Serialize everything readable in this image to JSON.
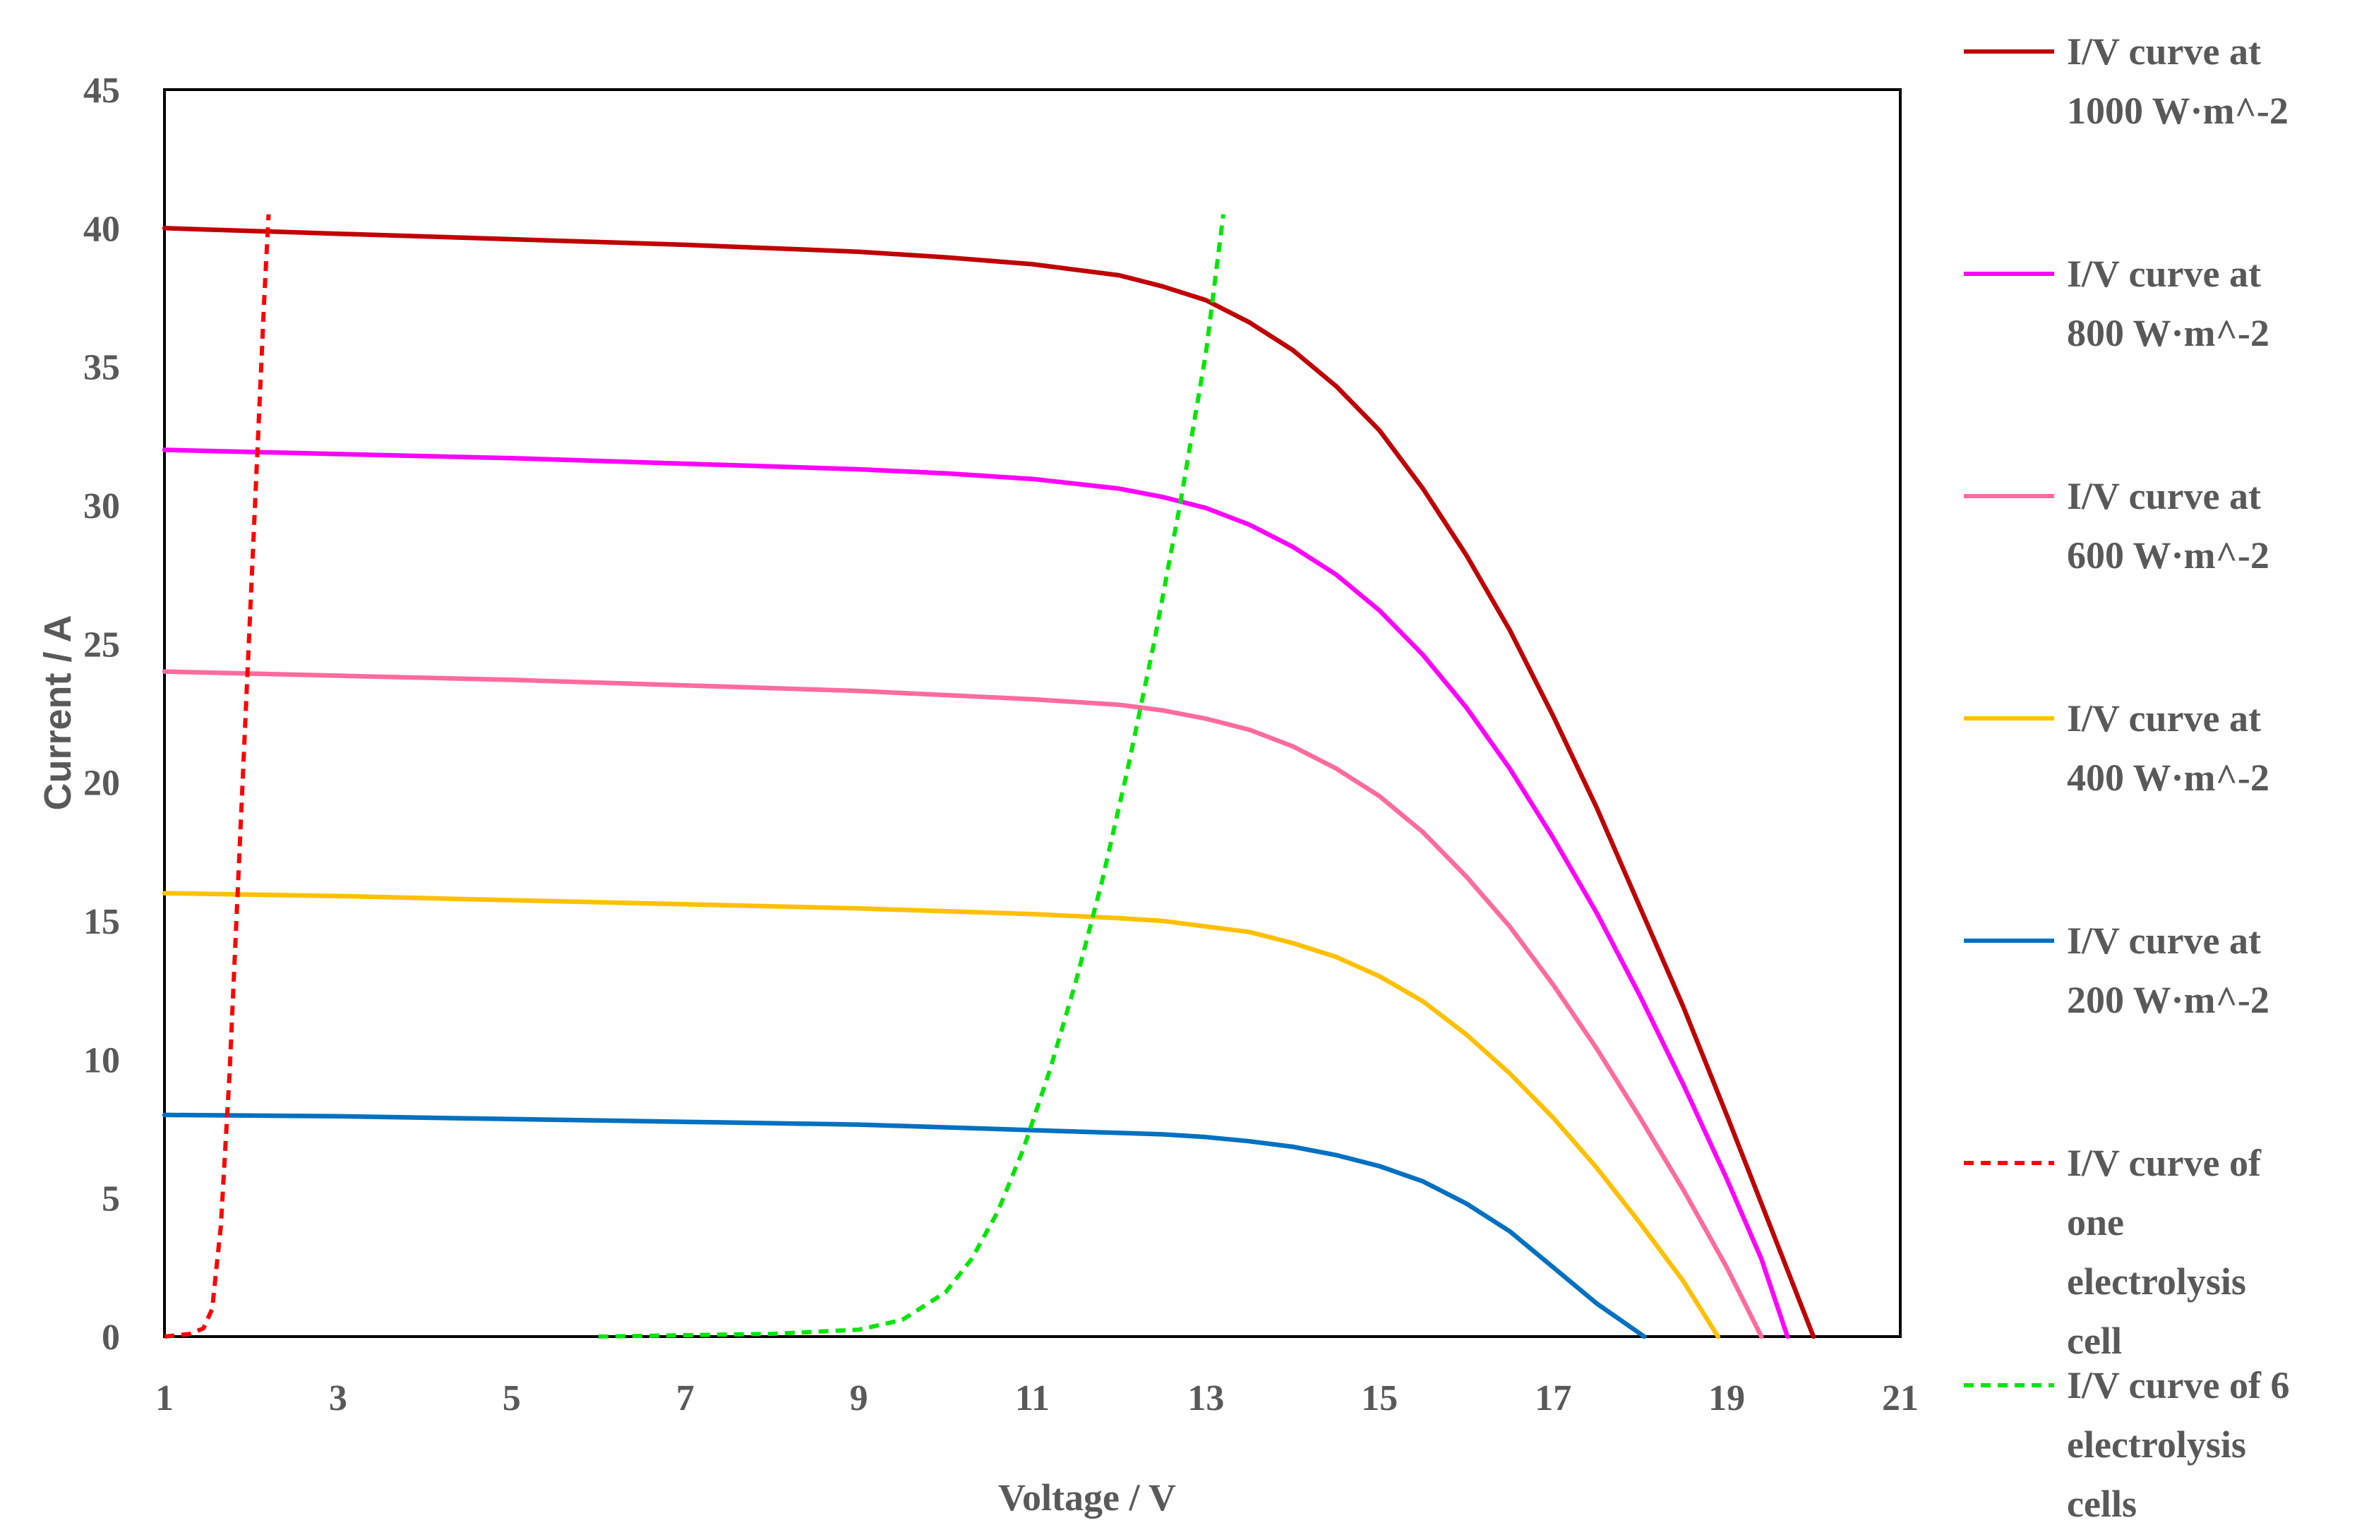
{
  "chart_data": {
    "type": "line",
    "xlabel": "Voltage  / V",
    "ylabel": "Current / A",
    "xlim": [
      1,
      21
    ],
    "ylim": [
      0,
      45
    ],
    "xticks": [
      1,
      3,
      5,
      7,
      9,
      11,
      13,
      15,
      17,
      19,
      21
    ],
    "yticks": [
      0,
      5,
      10,
      15,
      20,
      25,
      30,
      35,
      40,
      45
    ],
    "grid": false,
    "legend_position": "right",
    "series": [
      {
        "name": "I/V curve at 1000 W·m^-2",
        "legend_lines": [
          "I/V curve at",
          "1000 W·m^-2"
        ],
        "color": "#c00000",
        "dash": "solid",
        "x": [
          1,
          3,
          5,
          7,
          9,
          10,
          11,
          12,
          12.5,
          13,
          13.5,
          14,
          14.5,
          15,
          15.5,
          16,
          16.5,
          17,
          17.5,
          18,
          18.5,
          19,
          19.5,
          20
        ],
        "y": [
          40,
          39.8,
          39.6,
          39.4,
          39.15,
          38.95,
          38.7,
          38.3,
          37.9,
          37.4,
          36.6,
          35.6,
          34.3,
          32.7,
          30.6,
          28.2,
          25.5,
          22.4,
          19.1,
          15.5,
          11.9,
          8.0,
          4.0,
          0
        ]
      },
      {
        "name": "I/V curve at 800 W·m^-2",
        "legend_lines": [
          "I/V curve at",
          "800 W·m^-2"
        ],
        "color": "#ff00ff",
        "dash": "solid",
        "x": [
          1,
          3,
          5,
          7,
          9,
          10,
          11,
          12,
          12.5,
          13,
          13.5,
          14,
          14.5,
          15,
          15.5,
          16,
          16.5,
          17,
          17.5,
          18,
          18.5,
          19,
          19.4,
          19.7
        ],
        "y": [
          32,
          31.85,
          31.7,
          31.5,
          31.3,
          31.15,
          30.95,
          30.6,
          30.3,
          29.9,
          29.3,
          28.5,
          27.5,
          26.2,
          24.6,
          22.7,
          20.5,
          18.0,
          15.3,
          12.3,
          9.1,
          5.7,
          2.8,
          0
        ]
      },
      {
        "name": "I/V curve at 600 W·m^-2",
        "legend_lines": [
          "I/V curve at",
          "600 W·m^-2"
        ],
        "color": "#ff6b9d",
        "dash": "solid",
        "x": [
          1,
          3,
          5,
          7,
          9,
          10,
          11,
          12,
          12.5,
          13,
          13.5,
          14,
          14.5,
          15,
          15.5,
          16,
          16.5,
          17,
          17.5,
          18,
          18.5,
          19,
          19.4
        ],
        "y": [
          24,
          23.85,
          23.7,
          23.5,
          23.3,
          23.15,
          23.0,
          22.8,
          22.6,
          22.3,
          21.9,
          21.3,
          20.5,
          19.5,
          18.2,
          16.6,
          14.8,
          12.7,
          10.4,
          7.9,
          5.3,
          2.5,
          0
        ]
      },
      {
        "name": "I/V curve at 400 W·m^-2",
        "legend_lines": [
          "I/V curve at",
          "400 W·m^-2"
        ],
        "color": "#ffc000",
        "dash": "solid",
        "x": [
          1,
          3,
          5,
          7,
          9,
          10,
          11,
          12,
          12.5,
          13,
          13.5,
          14,
          14.5,
          15,
          15.5,
          16,
          16.5,
          17,
          17.5,
          18,
          18.5,
          18.9
        ],
        "y": [
          16,
          15.9,
          15.75,
          15.6,
          15.45,
          15.35,
          15.25,
          15.1,
          15.0,
          14.8,
          14.6,
          14.2,
          13.7,
          13.0,
          12.1,
          10.9,
          9.5,
          7.9,
          6.1,
          4.1,
          2.0,
          0
        ]
      },
      {
        "name": "I/V curve at 200 W·m^-2",
        "legend_lines": [
          "I/V curve at",
          "200 W·m^-2"
        ],
        "color": "#0070c0",
        "dash": "solid",
        "x": [
          1,
          3,
          5,
          7,
          9,
          10,
          11,
          12,
          12.5,
          13,
          13.5,
          14,
          14.5,
          15,
          15.5,
          16,
          16.5,
          17,
          17.5,
          18.05
        ],
        "y": [
          8,
          7.95,
          7.85,
          7.75,
          7.65,
          7.55,
          7.45,
          7.35,
          7.3,
          7.2,
          7.05,
          6.85,
          6.55,
          6.15,
          5.6,
          4.8,
          3.8,
          2.5,
          1.2,
          0
        ]
      },
      {
        "name": "I/V curve of one electrolysis cell",
        "legend_lines": [
          "I/V curve of",
          "one",
          "electrolysis",
          "cell"
        ],
        "color": "#ff0000",
        "dash": "dashed",
        "x": [
          1,
          1.3,
          1.45,
          1.55,
          1.65,
          1.75,
          1.85,
          1.95,
          2.05,
          2.15,
          2.2
        ],
        "y": [
          0,
          0.1,
          0.3,
          1.0,
          4.0,
          9.5,
          16.5,
          23.5,
          30.5,
          37.5,
          40.5
        ]
      },
      {
        "name": "I/V curve of 6 electrolysis cells",
        "legend_lines": [
          "I/V curve of 6",
          "electrolysis",
          "cells"
        ],
        "color": "#00e600",
        "dash": "dashed",
        "x": [
          6,
          7,
          8,
          9,
          9.5,
          10,
          10.3,
          10.6,
          10.9,
          11.2,
          11.5,
          11.8,
          12.1,
          12.4,
          12.7,
          13.0,
          13.2
        ],
        "y": [
          0,
          0.05,
          0.1,
          0.25,
          0.6,
          1.6,
          2.8,
          4.5,
          6.8,
          9.6,
          12.8,
          16.4,
          20.5,
          25.0,
          30.0,
          35.5,
          40.5
        ]
      }
    ]
  }
}
